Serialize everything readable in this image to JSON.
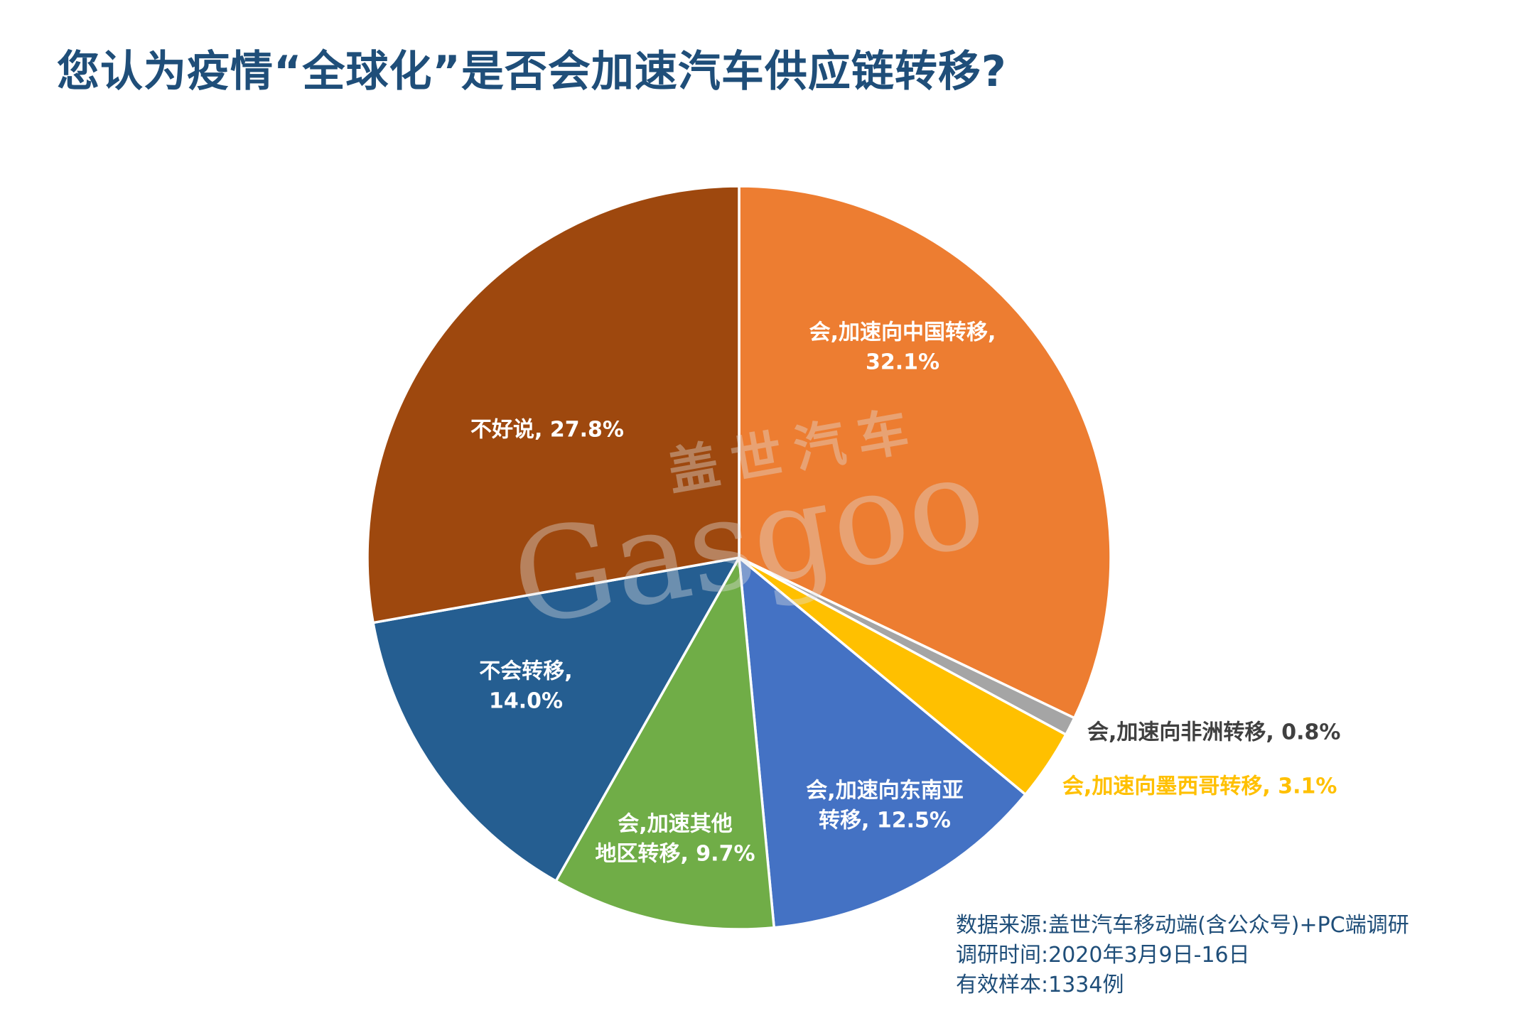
{
  "title": "您认为疫情“全球化”是否会加速汽车供应链转移?",
  "watermark": {
    "cn": "盖世汽车",
    "en": "Gasgoo"
  },
  "chart_data": {
    "type": "pie",
    "unit": "%",
    "start": "12 o'clock",
    "direction": "clockwise",
    "slices": [
      {
        "label": "会,加速向中国转移",
        "value": 32.1,
        "color": "#ed7d31",
        "text_color": "#ffffff",
        "label_lines": [
          "会,加速向中国转移,",
          "32.1%"
        ],
        "label_placement": "inside"
      },
      {
        "label": "会,加速向非洲转移",
        "value": 0.8,
        "color": "#a5a5a5",
        "text_color": "#404040",
        "label_lines": [
          "会,加速向非洲转移, 0.8%"
        ],
        "label_placement": "outside"
      },
      {
        "label": "会,加速向墨西哥转移",
        "value": 3.1,
        "color": "#ffc000",
        "text_color": "#ffc000",
        "label_lines": [
          "会,加速向墨西哥转移, 3.1%"
        ],
        "label_placement": "outside"
      },
      {
        "label": "会,加速向东南亚转移",
        "value": 12.5,
        "color": "#4472c4",
        "text_color": "#ffffff",
        "label_lines": [
          "会,加速向东南亚",
          "转移, 12.5%"
        ],
        "label_placement": "inside"
      },
      {
        "label": "会,加速其他地区转移",
        "value": 9.7,
        "color": "#70ad47",
        "text_color": "#ffffff",
        "label_lines": [
          "会,加速其他",
          "地区转移, 9.7%"
        ],
        "label_placement": "inside"
      },
      {
        "label": "不会转移",
        "value": 14.0,
        "color": "#255e91",
        "text_color": "#ffffff",
        "label_lines": [
          "不会转移,",
          "14.0%"
        ],
        "label_placement": "inside"
      },
      {
        "label": "不好说",
        "value": 27.8,
        "color": "#9e480e",
        "text_color": "#ffffff",
        "label_lines": [
          "不好说, 27.8%"
        ],
        "label_placement": "inside"
      }
    ]
  },
  "source": {
    "line1": "数据来源:盖世汽车移动端(含公众号)+PC端调研",
    "line2": "调研时间:2020年3月9日-16日",
    "line3": "有效样本:1334例"
  }
}
